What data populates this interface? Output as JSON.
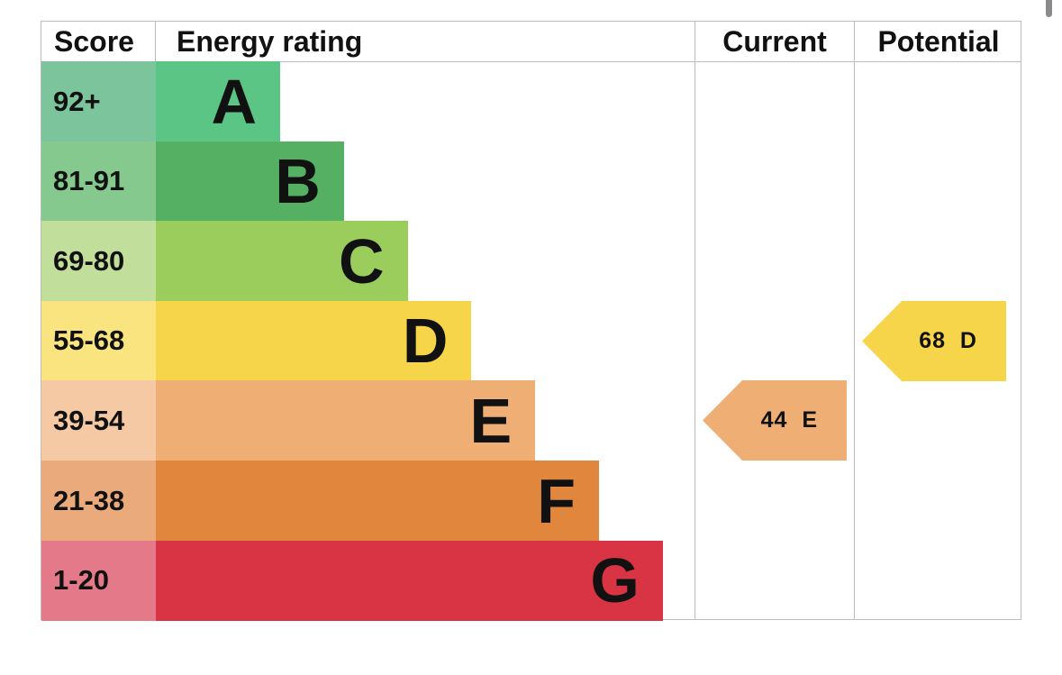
{
  "headers": {
    "score": "Score",
    "rating": "Energy rating",
    "current": "Current",
    "potential": "Potential"
  },
  "chart_data": {
    "type": "bar",
    "bands": [
      {
        "letter": "A",
        "range": "92+",
        "color": "#5bc585",
        "score_color": "#7cc49b",
        "level": 1
      },
      {
        "letter": "B",
        "range": "81-91",
        "color": "#56b064",
        "score_color": "#86c98f",
        "level": 2
      },
      {
        "letter": "C",
        "range": "69-80",
        "color": "#9bcd5d",
        "score_color": "#c1df9b",
        "level": 3
      },
      {
        "letter": "D",
        "range": "55-68",
        "color": "#f7d54a",
        "score_color": "#fae47f",
        "level": 4
      },
      {
        "letter": "E",
        "range": "39-54",
        "color": "#efae73",
        "score_color": "#f4c9a4",
        "level": 5
      },
      {
        "letter": "F",
        "range": "21-38",
        "color": "#e0863d",
        "score_color": "#eaaa7b",
        "level": 6
      },
      {
        "letter": "G",
        "range": "1-20",
        "color": "#d83444",
        "score_color": "#e47a89",
        "level": 7
      }
    ],
    "current": {
      "score": 44,
      "band": "E",
      "label": "44  E",
      "color": "#efae73"
    },
    "potential": {
      "score": 68,
      "band": "D",
      "label": "68  D",
      "color": "#f7d54a"
    }
  }
}
